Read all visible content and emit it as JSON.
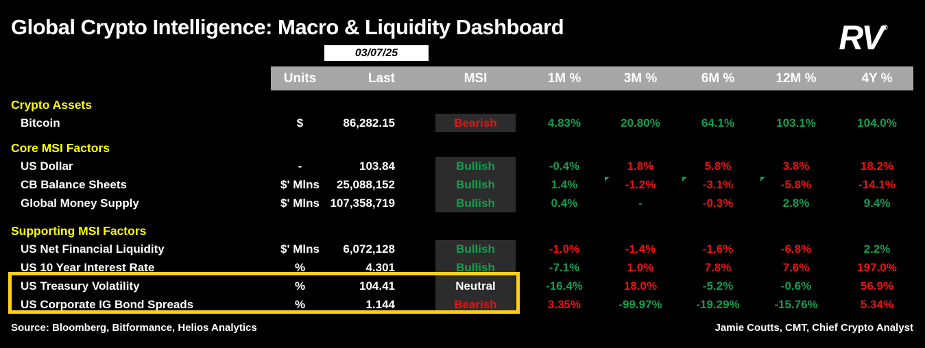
{
  "title": "Global Crypto Intelligence: Macro & Liquidity Dashboard",
  "logo": {
    "text": "RV",
    "mark": "®"
  },
  "date_badge": "03/07/25",
  "colors": {
    "background": "#000000",
    "section_yellow": "#ffff00",
    "highlight_box_yellow": "#fdd017",
    "positive_green": "#149e4f",
    "negative_red": "#ef1010",
    "header_gray": "#a6a6a6",
    "msi_cell_bg": "#2c2c2c"
  },
  "chart_data": {
    "type": "table",
    "title": "Global Crypto Intelligence: Macro & Liquidity Dashboard",
    "date": "03/07/25",
    "columns": [
      "Units",
      "Last",
      "MSI",
      "1M %",
      "3M %",
      "6M %",
      "12M %",
      "4Y %"
    ],
    "sections": [
      {
        "label": "Crypto Assets",
        "rows": [
          {
            "name": "Bitcoin",
            "units": "$",
            "last": "86,282.15",
            "msi": "Bearish",
            "msi_color": "red",
            "pcts": [
              {
                "v": "4.83%",
                "c": "green"
              },
              {
                "v": "20.80%",
                "c": "green"
              },
              {
                "v": "64.1%",
                "c": "green"
              },
              {
                "v": "103.1%",
                "c": "green"
              },
              {
                "v": "104.0%",
                "c": "green"
              }
            ]
          }
        ]
      },
      {
        "label": "Core MSI Factors",
        "rows": [
          {
            "name": "US Dollar",
            "units": "-",
            "last": "103.84",
            "msi": "Bullish",
            "msi_color": "green",
            "pcts": [
              {
                "v": "-0.4%",
                "c": "green"
              },
              {
                "v": "1.8%",
                "c": "red"
              },
              {
                "v": "5.8%",
                "c": "red"
              },
              {
                "v": "3.8%",
                "c": "red"
              },
              {
                "v": "18.2%",
                "c": "red"
              }
            ]
          },
          {
            "name": "CB Balance Sheets",
            "units": "$' Mlns",
            "last": "25,088,152",
            "msi": "Bullish",
            "msi_color": "green",
            "pcts": [
              {
                "v": "1.4%",
                "c": "green"
              },
              {
                "v": "-1.2%",
                "c": "red",
                "flag": true
              },
              {
                "v": "-3.1%",
                "c": "red",
                "flag": true
              },
              {
                "v": "-5.8%",
                "c": "red",
                "flag": true
              },
              {
                "v": "-14.1%",
                "c": "red"
              }
            ]
          },
          {
            "name": "Global Money Supply",
            "units": "$' Mlns",
            "last": "107,358,719",
            "msi": "Bullish",
            "msi_color": "green",
            "pcts": [
              {
                "v": "0.4%",
                "c": "green"
              },
              {
                "v": "-",
                "c": "green"
              },
              {
                "v": "-0.3%",
                "c": "red"
              },
              {
                "v": "2.8%",
                "c": "green"
              },
              {
                "v": "9.4%",
                "c": "green"
              }
            ]
          }
        ]
      },
      {
        "label": "Supporting MSI Factors",
        "rows": [
          {
            "name": "US Net Financial Liquidity",
            "units": "$' Mlns",
            "last": "6,072,128",
            "msi": "Bullish",
            "msi_color": "green",
            "pcts": [
              {
                "v": "-1.0%",
                "c": "red"
              },
              {
                "v": "-1.4%",
                "c": "red"
              },
              {
                "v": "-1.6%",
                "c": "red"
              },
              {
                "v": "-6.8%",
                "c": "red"
              },
              {
                "v": "2.2%",
                "c": "green"
              }
            ]
          },
          {
            "name": "US 10 Year Interest Rate",
            "units": "%",
            "last": "4.301",
            "msi": "Bullish",
            "msi_color": "green",
            "pcts": [
              {
                "v": "-7.1%",
                "c": "green"
              },
              {
                "v": "1.0%",
                "c": "red"
              },
              {
                "v": "7.8%",
                "c": "red"
              },
              {
                "v": "7.6%",
                "c": "red"
              },
              {
                "v": "197.0%",
                "c": "red"
              }
            ]
          },
          {
            "name": "US Treasury Volatility",
            "units": "%",
            "last": "104.41",
            "msi": "Neutral",
            "msi_color": "white",
            "pcts": [
              {
                "v": "-16.4%",
                "c": "green"
              },
              {
                "v": "18.0%",
                "c": "red"
              },
              {
                "v": "-5.2%",
                "c": "green"
              },
              {
                "v": "-0.6%",
                "c": "green"
              },
              {
                "v": "56.9%",
                "c": "red"
              }
            ]
          },
          {
            "name": "US Corporate IG Bond Spreads",
            "units": "%",
            "last": "1.144",
            "msi": "Bearish",
            "msi_color": "red",
            "pcts": [
              {
                "v": "3.35%",
                "c": "red"
              },
              {
                "v": "-99.97%",
                "c": "green"
              },
              {
                "v": "-19.29%",
                "c": "green"
              },
              {
                "v": "-15.76%",
                "c": "green"
              },
              {
                "v": "5.34%",
                "c": "red"
              }
            ]
          }
        ]
      }
    ],
    "highlighted_rows": [
      "US Treasury Volatility",
      "US Corporate IG Bond Spreads"
    ]
  },
  "footer": {
    "source": "Source: Bloomberg, Bitformance, Helios Analytics",
    "analyst": "Jamie Coutts, CMT, Chief Crypto Analyst"
  }
}
